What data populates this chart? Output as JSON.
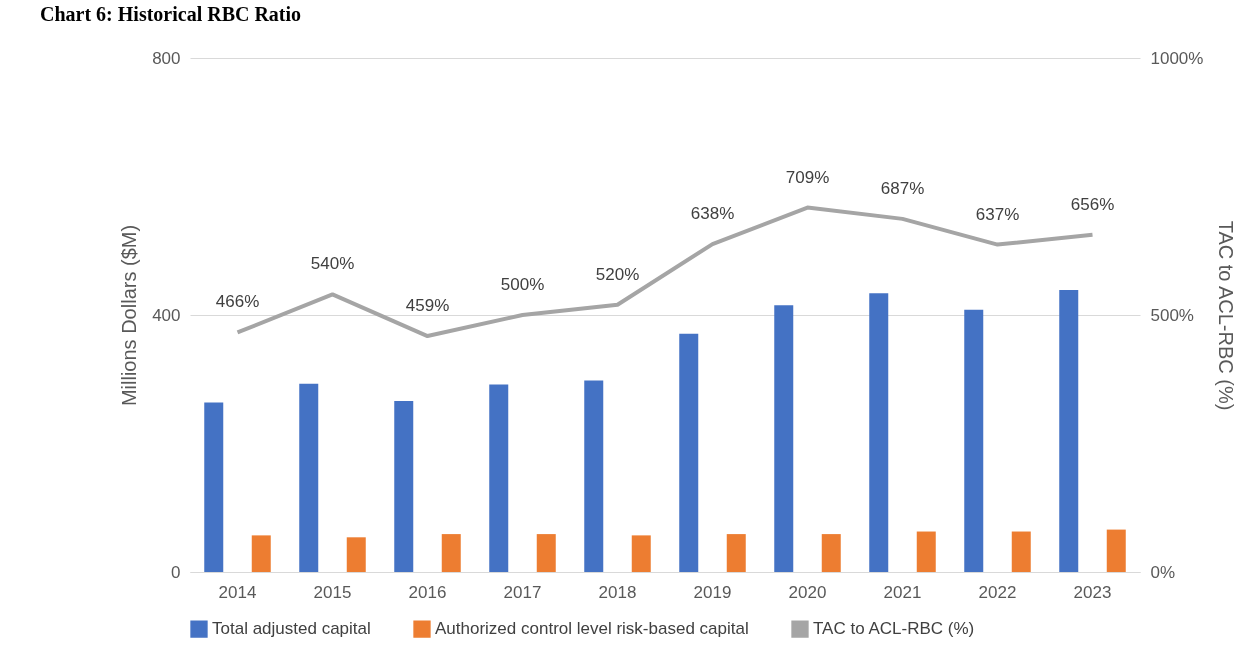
{
  "chart_data": {
    "type": "bar",
    "title": "Chart 6: Historical RBC Ratio",
    "ylabel": "Millions Dollars ($M)",
    "y2label": "TAC to ACL-RBC (%)",
    "categories": [
      "2014",
      "2015",
      "2016",
      "2017",
      "2018",
      "2019",
      "2020",
      "2021",
      "2022",
      "2023"
    ],
    "series": [
      {
        "name": "Total adjusted capital",
        "color": "#4472c4",
        "values": [
          264,
          293,
          266,
          292,
          298,
          371,
          415,
          434,
          408,
          439
        ]
      },
      {
        "name": "Authorized control level risk-based capital",
        "color": "#ed7d31",
        "values": [
          57,
          54,
          59,
          59,
          57,
          59,
          59,
          63,
          63,
          66
        ]
      },
      {
        "name": "TAC to ACL-RBC (%)",
        "type": "line",
        "axis": "y2",
        "color": "#a5a5a5",
        "values": [
          466,
          540,
          459,
          500,
          520,
          638,
          709,
          687,
          637,
          656
        ],
        "value_labels": [
          "466%",
          "540%",
          "459%",
          "500%",
          "520%",
          "638%",
          "709%",
          "687%",
          "637%",
          "656%"
        ]
      }
    ],
    "ylim": [
      0,
      800
    ],
    "yticks": [
      0,
      400,
      800
    ],
    "y2lim": [
      0,
      1000
    ],
    "y2ticks": [
      {
        "value": 0,
        "label": "0%"
      },
      {
        "value": 500,
        "label": "500%"
      },
      {
        "value": 1000,
        "label": "1000%"
      }
    ],
    "grid": "y",
    "legend": "bottom",
    "marker": "none",
    "line_style": "solid"
  }
}
